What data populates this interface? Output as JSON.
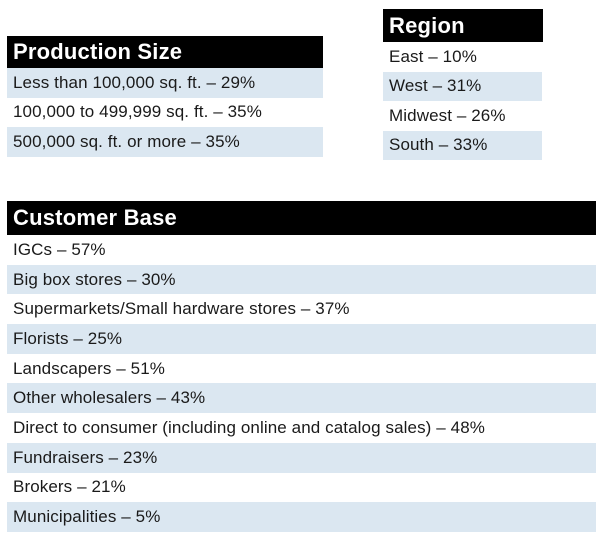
{
  "production_size": {
    "title": "Production Size",
    "rows": [
      "Less than 100,000 sq. ft. – 29%",
      "100,000 to 499,999 sq. ft. – 35%",
      "500,000 sq. ft. or more – 35%"
    ]
  },
  "region": {
    "title": "Region",
    "rows": [
      "East – 10%",
      "West – 31%",
      "Midwest – 26%",
      "South – 33%"
    ]
  },
  "customer_base": {
    "title": "Customer Base",
    "rows": [
      "IGCs – 57%",
      "Big box stores – 30%",
      "Supermarkets/Small hardware stores – 37%",
      "Florists – 25%",
      "Landscapers – 51%",
      "Other wholesalers – 43%",
      "Direct to consumer (including online and catalog sales) – 48%",
      "Fundraisers – 23%",
      "Brokers – 21%",
      "Municipalities – 5%"
    ]
  },
  "colors": {
    "header_background": "#000000",
    "header_text": "#ffffff",
    "shaded_row": "#dbe7f1"
  }
}
